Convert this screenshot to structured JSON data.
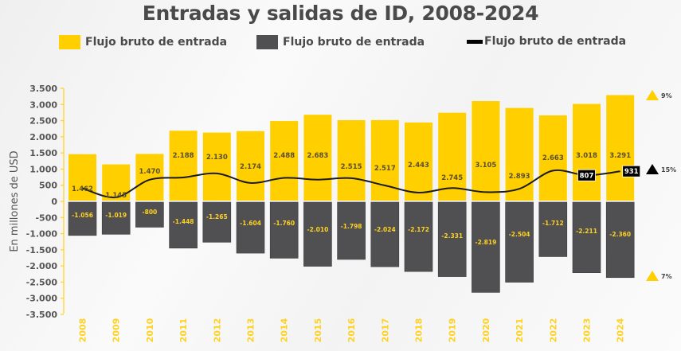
{
  "chart_data": {
    "type": "bar",
    "title": "Entradas y salidas de ID, 2008-2024",
    "xlabel": "",
    "ylabel": "En millones de USD",
    "ylim": [
      -3500,
      3500
    ],
    "yticks": [
      3500,
      3000,
      2500,
      2000,
      1500,
      1000,
      500,
      0,
      -500,
      -1000,
      -1500,
      -2000,
      -2500,
      -3000,
      -3500
    ],
    "ytick_labels": [
      "3.500",
      "3.000",
      "2.500",
      "2.000",
      "1.500",
      "1.000",
      "500",
      "0",
      "-500",
      "-1.000",
      "-1.500",
      "-2.000",
      "-2.500",
      "-3.000",
      "-3.500"
    ],
    "categories": [
      "2008",
      "2009",
      "2010",
      "2011",
      "2012",
      "2013",
      "2014",
      "2015",
      "2016",
      "2017",
      "2018",
      "2019",
      "2020",
      "2021",
      "2022",
      "2023",
      "2024"
    ],
    "legend_position": "top",
    "series": [
      {
        "name": "Flujo bruto de entrada",
        "type": "bar",
        "color": "#ffcf00",
        "values": [
          1462,
          1145,
          1470,
          2188,
          2130,
          2174,
          2488,
          2683,
          2515,
          2517,
          2443,
          2745,
          3105,
          2893,
          2663,
          3018,
          3291
        ],
        "labels": [
          "1.462",
          "1.145",
          "1.470",
          "2.188",
          "2.130",
          "2.174",
          "2.488",
          "2.683",
          "2.515",
          "2.517",
          "2.443",
          "2.745",
          "3.105",
          "2.893",
          "2.663",
          "3.018",
          "3.291"
        ]
      },
      {
        "name": "Flujo bruto de entrada",
        "type": "bar",
        "color": "#505053",
        "values": [
          -1056,
          -1019,
          -800,
          -1448,
          -1265,
          -1604,
          -1760,
          -2010,
          -1798,
          -2024,
          -2172,
          -2331,
          -2819,
          -2504,
          -1712,
          -2211,
          -2360
        ],
        "labels": [
          "-1.056",
          "-1.019",
          "-800",
          "-1.448",
          "-1.265",
          "-1.604",
          "-1.760",
          "-2.010",
          "-1.798",
          "-2.024",
          "-2.172",
          "-2.331",
          "-2.819",
          "-2.504",
          "-1.712",
          "-2.211",
          "-2.360"
        ]
      },
      {
        "name": "Flujo bruto de entrada",
        "type": "line",
        "color": "#1a1a1a",
        "values": [
          406,
          126,
          670,
          740,
          865,
          570,
          728,
          673,
          717,
          493,
          271,
          414,
          286,
          389,
          951,
          807,
          931
        ],
        "labeled_points": [
          {
            "category": "2023",
            "label": "807"
          },
          {
            "category": "2024",
            "label": "931"
          }
        ]
      }
    ],
    "annotations": [
      {
        "icon": "triangle-up-icon",
        "color": "#ffcf00",
        "text": "9%",
        "refers_to": "Flujo bruto de entrada (bars, positive)"
      },
      {
        "icon": "triangle-up-icon",
        "color": "#000000",
        "text": "15%",
        "refers_to": "line"
      },
      {
        "icon": "triangle-up-icon",
        "color": "#ffcf00",
        "text": "7%",
        "refers_to": "Flujo bruto de entrada (bars, negative)"
      }
    ]
  },
  "legend": [
    {
      "label": "Flujo bruto de entrada",
      "color": "#ffcf00",
      "kind": "swatch"
    },
    {
      "label": "Flujo bruto de entrada",
      "color": "#505053",
      "kind": "swatch"
    },
    {
      "label": "Flujo bruto de entrada",
      "color": "#000000",
      "kind": "line"
    }
  ]
}
